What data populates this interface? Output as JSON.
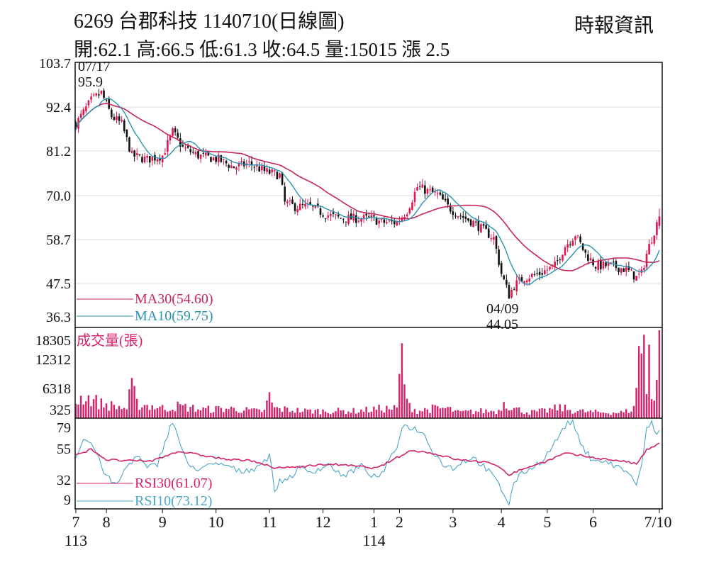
{
  "header": {
    "title": "6269  台郡科技 1140710(日線圖)",
    "subtitle": "開:62.1 高:66.5 低:61.3 收:64.5 量:15015 漲 2.5",
    "source": "時報資訊"
  },
  "colors": {
    "up": "#e0154e",
    "down": "#111111",
    "ma30": "#c8275a",
    "ma10": "#2a93b0",
    "volume": "#d6226b",
    "rsi30": "#d6226b",
    "rsi10": "#4aa6c6",
    "grid": "#dddddd",
    "axis": "#111111"
  },
  "chart_data": [
    {
      "type": "candlestick",
      "y_ticks": [
        "103.7",
        "92.4",
        "81.2",
        "70.0",
        "58.7",
        "47.5",
        "36.3"
      ],
      "ylim": [
        36.3,
        103.7
      ],
      "annotations": [
        {
          "date": "07/17",
          "value": "95.9",
          "kind": "high"
        },
        {
          "date": "04/09",
          "value": "44.05",
          "kind": "low"
        }
      ],
      "x_labels": [
        "7",
        "8",
        "9",
        "10",
        "11",
        "12",
        "1",
        "2",
        "3",
        "4",
        "5",
        "6",
        "7/10"
      ],
      "x_year_labels": [
        "113",
        "114"
      ],
      "legend": [
        {
          "label": "MA30(54.60)",
          "color_key": "ma30"
        },
        {
          "label": "MA10(59.75)",
          "color_key": "ma10"
        }
      ],
      "keypoints": [
        [
          0,
          88
        ],
        [
          6,
          94
        ],
        [
          10,
          96
        ],
        [
          14,
          90
        ],
        [
          18,
          88
        ],
        [
          22,
          80
        ],
        [
          28,
          79
        ],
        [
          34,
          80
        ],
        [
          38,
          86
        ],
        [
          42,
          82
        ],
        [
          48,
          80
        ],
        [
          56,
          79
        ],
        [
          62,
          77
        ],
        [
          68,
          78
        ],
        [
          74,
          76
        ],
        [
          80,
          75
        ],
        [
          82,
          68
        ],
        [
          86,
          67
        ],
        [
          92,
          67
        ],
        [
          98,
          65
        ],
        [
          104,
          64
        ],
        [
          110,
          64
        ],
        [
          116,
          64
        ],
        [
          120,
          63
        ],
        [
          126,
          63
        ],
        [
          130,
          66
        ],
        [
          134,
          72
        ],
        [
          138,
          71
        ],
        [
          142,
          70
        ],
        [
          146,
          67
        ],
        [
          150,
          65
        ],
        [
          156,
          63
        ],
        [
          160,
          61
        ],
        [
          164,
          59
        ],
        [
          167,
          50
        ],
        [
          170,
          44.5
        ],
        [
          172,
          47
        ],
        [
          176,
          49
        ],
        [
          182,
          50
        ],
        [
          188,
          52
        ],
        [
          192,
          57
        ],
        [
          196,
          60
        ],
        [
          200,
          55
        ],
        [
          204,
          52
        ],
        [
          210,
          52
        ],
        [
          216,
          51
        ],
        [
          220,
          49
        ],
        [
          222,
          50
        ],
        [
          224,
          55
        ],
        [
          226,
          59
        ],
        [
          229,
          64.5
        ]
      ]
    },
    {
      "type": "bar",
      "title": "成交量(張)",
      "y_ticks": [
        "18305",
        "12312",
        "6318",
        "325"
      ],
      "ylim": [
        325,
        18305
      ],
      "keypoints": [
        [
          0,
          3500
        ],
        [
          3,
          4500
        ],
        [
          6,
          4000
        ],
        [
          10,
          3000
        ],
        [
          20,
          2000
        ],
        [
          22,
          6500
        ],
        [
          24,
          3000
        ],
        [
          30,
          2500
        ],
        [
          35,
          2000
        ],
        [
          40,
          2500
        ],
        [
          50,
          1800
        ],
        [
          60,
          2000
        ],
        [
          70,
          1500
        ],
        [
          74,
          1500
        ],
        [
          76,
          4500
        ],
        [
          78,
          2000
        ],
        [
          90,
          1500
        ],
        [
          100,
          1500
        ],
        [
          110,
          1500
        ],
        [
          120,
          2000
        ],
        [
          126,
          2000
        ],
        [
          128,
          13500
        ],
        [
          130,
          3000
        ],
        [
          134,
          1500
        ],
        [
          140,
          2000
        ],
        [
          146,
          2000
        ],
        [
          150,
          1200
        ],
        [
          160,
          1500
        ],
        [
          166,
          1500
        ],
        [
          168,
          3500
        ],
        [
          172,
          2000
        ],
        [
          178,
          1200
        ],
        [
          184,
          1500
        ],
        [
          190,
          2200
        ],
        [
          196,
          1500
        ],
        [
          205,
          1200
        ],
        [
          215,
          1200
        ],
        [
          219,
          2000
        ],
        [
          221,
          14000
        ],
        [
          223,
          15000
        ],
        [
          224,
          5000
        ],
        [
          225,
          18305
        ],
        [
          226,
          6000
        ],
        [
          227,
          4000
        ],
        [
          228,
          8000
        ],
        [
          229,
          15015
        ]
      ]
    },
    {
      "type": "line",
      "y_ticks": [
        "79",
        "55",
        "32",
        "9"
      ],
      "ylim": [
        0,
        85
      ],
      "legend": [
        {
          "label": "RSI30(61.07)",
          "color_key": "rsi30"
        },
        {
          "label": "RSI10(73.12)",
          "color_key": "rsi10"
        }
      ],
      "rsi10_keypoints": [
        [
          0,
          50
        ],
        [
          3,
          65
        ],
        [
          6,
          62
        ],
        [
          8,
          52
        ],
        [
          12,
          30
        ],
        [
          16,
          22
        ],
        [
          20,
          40
        ],
        [
          24,
          50
        ],
        [
          28,
          38
        ],
        [
          32,
          42
        ],
        [
          36,
          70
        ],
        [
          38,
          82
        ],
        [
          40,
          68
        ],
        [
          44,
          40
        ],
        [
          48,
          38
        ],
        [
          52,
          40
        ],
        [
          58,
          42
        ],
        [
          64,
          35
        ],
        [
          70,
          38
        ],
        [
          74,
          45
        ],
        [
          76,
          50
        ],
        [
          78,
          18
        ],
        [
          80,
          25
        ],
        [
          84,
          30
        ],
        [
          88,
          38
        ],
        [
          92,
          35
        ],
        [
          96,
          38
        ],
        [
          100,
          42
        ],
        [
          104,
          30
        ],
        [
          108,
          35
        ],
        [
          112,
          40
        ],
        [
          116,
          32
        ],
        [
          118,
          28
        ],
        [
          122,
          40
        ],
        [
          126,
          58
        ],
        [
          128,
          78
        ],
        [
          132,
          76
        ],
        [
          136,
          72
        ],
        [
          140,
          55
        ],
        [
          144,
          42
        ],
        [
          148,
          38
        ],
        [
          152,
          45
        ],
        [
          156,
          48
        ],
        [
          160,
          40
        ],
        [
          164,
          30
        ],
        [
          168,
          14
        ],
        [
          170,
          5
        ],
        [
          172,
          25
        ],
        [
          176,
          35
        ],
        [
          180,
          40
        ],
        [
          184,
          48
        ],
        [
          188,
          62
        ],
        [
          192,
          78
        ],
        [
          195,
          82
        ],
        [
          198,
          60
        ],
        [
          202,
          48
        ],
        [
          206,
          45
        ],
        [
          210,
          42
        ],
        [
          214,
          38
        ],
        [
          218,
          32
        ],
        [
          220,
          20
        ],
        [
          222,
          40
        ],
        [
          224,
          75
        ],
        [
          226,
          80
        ],
        [
          228,
          70
        ],
        [
          229,
          73
        ]
      ],
      "rsi30_keypoints": [
        [
          0,
          50
        ],
        [
          6,
          56
        ],
        [
          12,
          46
        ],
        [
          20,
          45
        ],
        [
          30,
          45
        ],
        [
          40,
          54
        ],
        [
          50,
          50
        ],
        [
          60,
          46
        ],
        [
          70,
          45
        ],
        [
          78,
          38
        ],
        [
          90,
          40
        ],
        [
          100,
          42
        ],
        [
          110,
          40
        ],
        [
          118,
          38
        ],
        [
          126,
          48
        ],
        [
          132,
          55
        ],
        [
          140,
          52
        ],
        [
          150,
          46
        ],
        [
          160,
          44
        ],
        [
          166,
          40
        ],
        [
          170,
          32
        ],
        [
          176,
          38
        ],
        [
          184,
          44
        ],
        [
          192,
          52
        ],
        [
          198,
          50
        ],
        [
          206,
          47
        ],
        [
          214,
          45
        ],
        [
          220,
          42
        ],
        [
          224,
          55
        ],
        [
          229,
          61
        ]
      ]
    }
  ]
}
